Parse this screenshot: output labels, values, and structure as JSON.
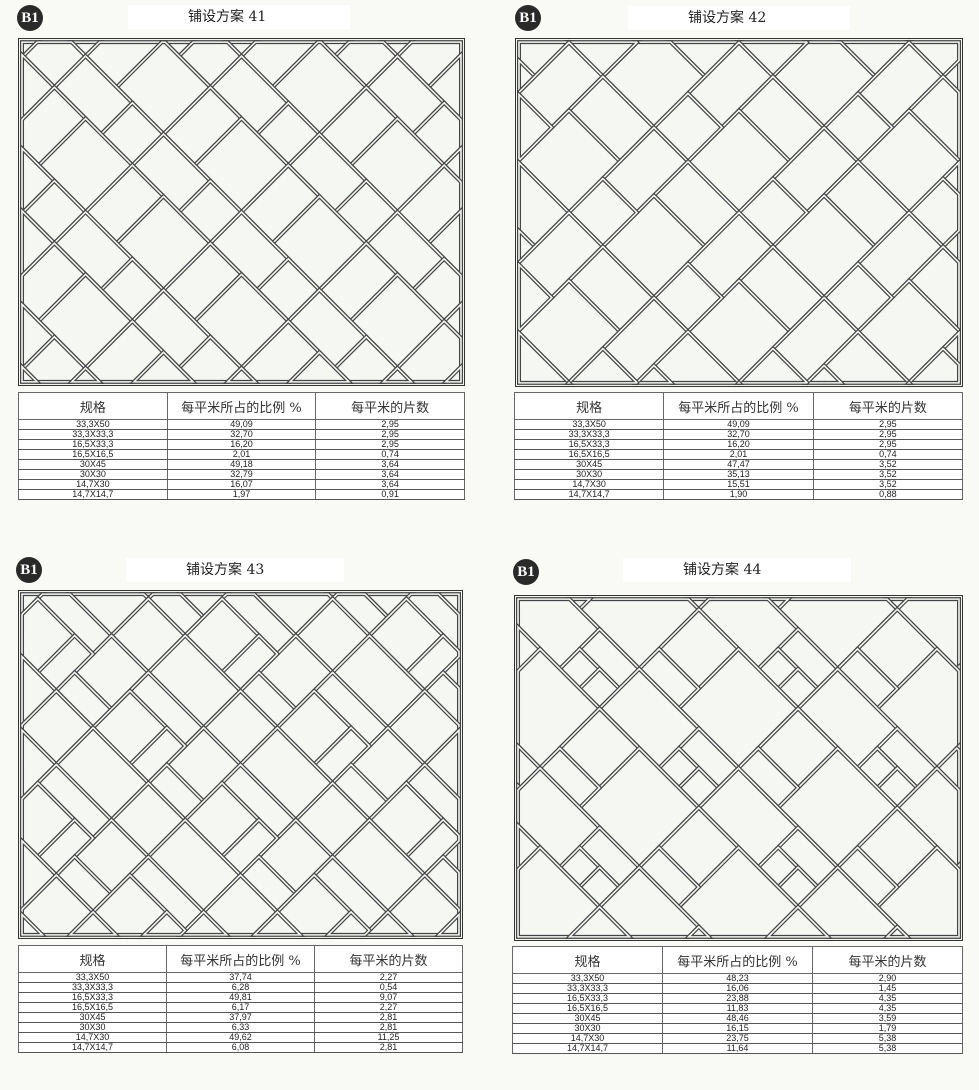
{
  "headers": [
    "规格",
    "每平米所占的比例 %",
    "每平米的片数"
  ],
  "sizes": [
    "33,3X50",
    "33,3X33,3",
    "16,5X33,3",
    "16,5X16,5",
    "30X45",
    "30X30",
    "14,7X30",
    "14,7X14,7"
  ],
  "panels": [
    {
      "badge": "B1",
      "title": "铺设方案 41",
      "ratio": [
        "49,09",
        "32,70",
        "16,20",
        "2,01",
        "49,18",
        "32,79",
        "16,07",
        "1,97"
      ],
      "pieces": [
        "2,95",
        "2,95",
        "2,95",
        "0,74",
        "3,64",
        "3,64",
        "3,64",
        "0,91"
      ]
    },
    {
      "badge": "B1",
      "title": "铺设方案 42",
      "ratio": [
        "49,09",
        "32,70",
        "16,20",
        "2,01",
        "47,47",
        "35,13",
        "15,51",
        "1,90"
      ],
      "pieces": [
        "2,95",
        "2,95",
        "2,95",
        "0,74",
        "3,52",
        "3,52",
        "3,52",
        "0,88"
      ]
    },
    {
      "badge": "B1",
      "title": "铺设方案 43",
      "ratio": [
        "37,74",
        "6,28",
        "49,81",
        "6,17",
        "37,97",
        "6,33",
        "49,62",
        "6,08"
      ],
      "pieces": [
        "2,27",
        "0,54",
        "9,07",
        "2,27",
        "2,81",
        "2,81",
        "11,25",
        "2,81"
      ]
    },
    {
      "badge": "B1",
      "title": "铺设方案 44",
      "ratio": [
        "48,23",
        "16,06",
        "23,88",
        "11,83",
        "48,46",
        "16,15",
        "23,75",
        "11,64"
      ],
      "pieces": [
        "2,90",
        "1,45",
        "4,35",
        "4,35",
        "3,59",
        "1,79",
        "5,38",
        "5,38"
      ]
    }
  ]
}
